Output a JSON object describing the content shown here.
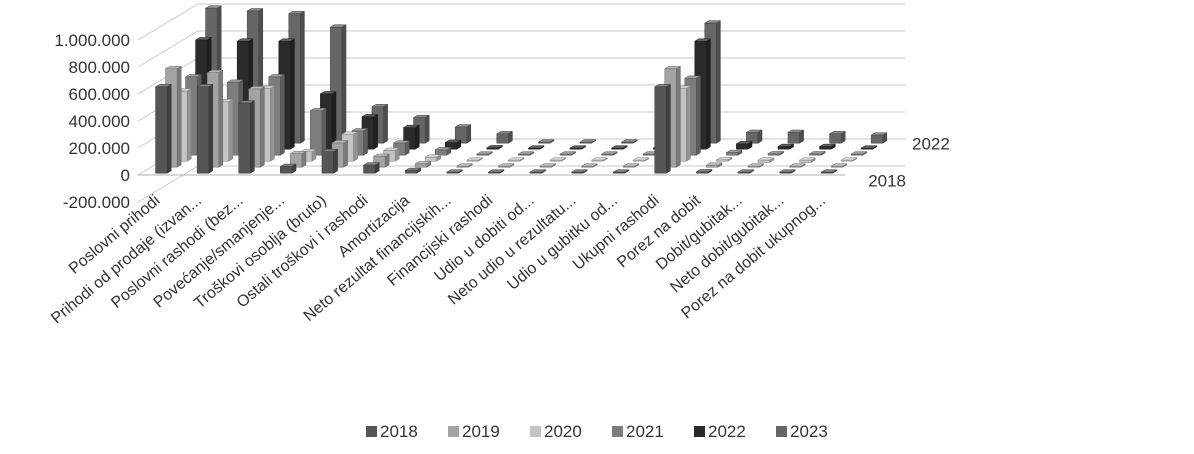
{
  "chart_data": {
    "type": "bar",
    "title": "",
    "xlabel": "",
    "ylabel": "",
    "ylim": [
      -200000,
      1000000
    ],
    "y_ticks": [
      -200000,
      0,
      200000,
      400000,
      600000,
      800000,
      1000000
    ],
    "y_tick_labels": [
      "-200.000",
      "0",
      "200.000",
      "400.000",
      "600.000",
      "800.000",
      "1.000.000"
    ],
    "depth_axis_labels": [
      "2022",
      "2018"
    ],
    "grid": true,
    "legend": "bottom",
    "categories": [
      "Poslovni prihodi",
      "Prihodi od prodaje (izvan...",
      "Poslovni rashodi (bez...",
      "Povećanje/smanjenje...",
      "Troškovi osoblja (bruto)",
      "Ostali troškovi i rashodi",
      "Amortizacija",
      "Neto rezultat financijskih...",
      "Financijski rashodi",
      "Udio u dobiti od...",
      "Neto udio u rezultatu...",
      "Udio u gubitku od...",
      "Ukupni rashodi",
      "Porez na dobit",
      "Dobit/gubitak...",
      "Neto dobit/gubitak...",
      "Porez na dobit ukupnog..."
    ],
    "series": [
      {
        "name": "2018",
        "color": "#555555",
        "values": [
          640000,
          640000,
          520000,
          50000,
          160000,
          60000,
          20000,
          0,
          0,
          0,
          0,
          0,
          640000,
          10000,
          0,
          0,
          0
        ]
      },
      {
        "name": "2019",
        "color": "#a3a3a3",
        "values": [
          730000,
          700000,
          580000,
          100000,
          180000,
          80000,
          25000,
          0,
          0,
          0,
          0,
          0,
          730000,
          15000,
          0,
          0,
          0
        ]
      },
      {
        "name": "2020",
        "color": "#c4c4c4",
        "values": [
          520000,
          440000,
          540000,
          70000,
          200000,
          80000,
          30000,
          0,
          0,
          0,
          0,
          0,
          540000,
          10000,
          -10000,
          -10000,
          0
        ]
      },
      {
        "name": "2021",
        "color": "#7d7d7d",
        "values": [
          580000,
          540000,
          580000,
          330000,
          180000,
          90000,
          40000,
          0,
          0,
          0,
          0,
          0,
          570000,
          20000,
          10000,
          10000,
          0
        ]
      },
      {
        "name": "2022",
        "color": "#2b2b2b",
        "values": [
          810000,
          800000,
          800000,
          410000,
          240000,
          160000,
          50000,
          10000,
          0,
          0,
          0,
          0,
          800000,
          40000,
          20000,
          20000,
          0
        ]
      },
      {
        "name": "2023",
        "color": "#666666",
        "values": [
          1000000,
          980000,
          960000,
          860000,
          270000,
          190000,
          120000,
          70000,
          0,
          0,
          0,
          0,
          890000,
          80000,
          80000,
          70000,
          60000
        ]
      }
    ]
  }
}
